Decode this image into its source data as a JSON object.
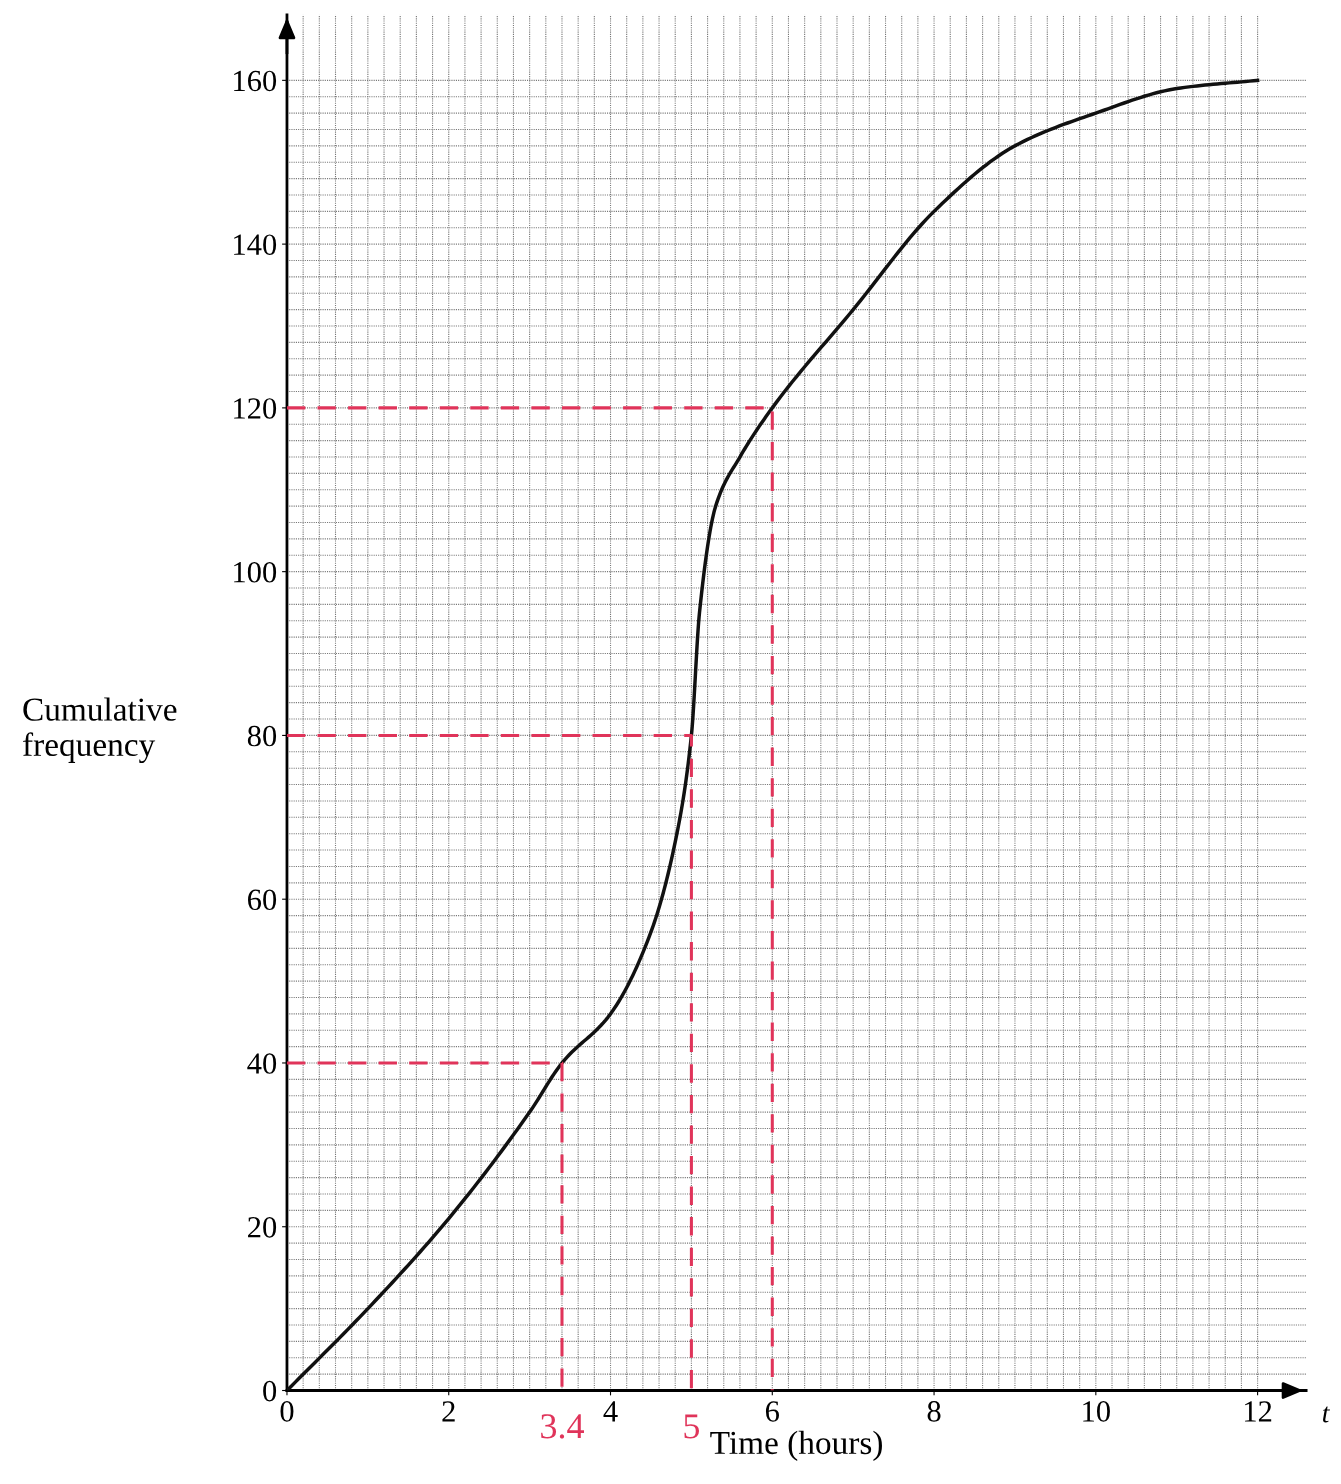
{
  "chart_data": {
    "type": "line",
    "xlabel": "Time (hours)",
    "ylabel": "Cumulative\nfrequency",
    "xlim": [
      0,
      12.6
    ],
    "ylim": [
      0,
      168
    ],
    "xticks": [
      0,
      2,
      4,
      6,
      8,
      10,
      12
    ],
    "yticks": [
      0,
      20,
      40,
      60,
      80,
      100,
      120,
      140,
      160
    ],
    "grid": true,
    "marker": "none",
    "series": [
      {
        "color": "#111111",
        "line_style": "solid",
        "x": [
          0,
          1,
          2,
          3,
          3.4,
          4,
          4.5,
          4.8,
          5,
          5.1,
          5.3,
          5.6,
          6,
          7,
          8,
          9,
          10,
          11,
          12
        ],
        "values": [
          0,
          10,
          21,
          34,
          40,
          46,
          56,
          67,
          80,
          95,
          108,
          114,
          120,
          132,
          144,
          152,
          156,
          159,
          160
        ]
      },
      {
        "color": "#e0345a",
        "line_style": "dashed",
        "x": [
          0,
          6,
          6
        ],
        "values": [
          120,
          120,
          0
        ]
      },
      {
        "color": "#e0345a",
        "line_style": "dashed",
        "x": [
          0,
          5,
          5
        ],
        "values": [
          80,
          80,
          0
        ]
      },
      {
        "color": "#e0345a",
        "line_style": "dashed",
        "x": [
          0,
          3.4,
          3.4
        ],
        "values": [
          40,
          40,
          0
        ]
      }
    ],
    "annotations": [
      {
        "text": "3.4",
        "x": 3.4,
        "y": 0
      },
      {
        "text": "5",
        "x": 5,
        "y": 0
      },
      "t"
    ]
  }
}
